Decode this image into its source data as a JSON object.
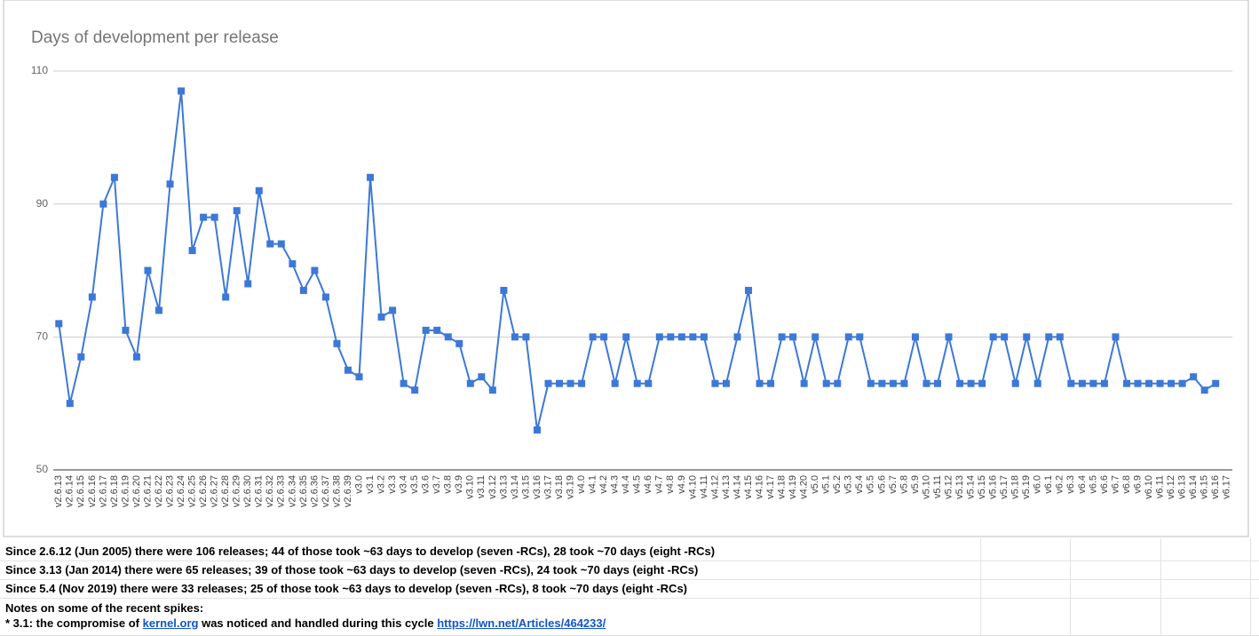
{
  "chart_data": {
    "type": "line",
    "title": "Days of development per release",
    "categories": [
      "v2.6.13",
      "v2.6.14",
      "v2.6.15",
      "v2.6.16",
      "v2.6.17",
      "v2.6.18",
      "v2.6.19",
      "v2.6.20",
      "v2.6.21",
      "v2.6.22",
      "v2.6.23",
      "v2.6.24",
      "v2.6.25",
      "v2.6.26",
      "v2.6.27",
      "v2.6.28",
      "v2.6.29",
      "v2.6.30",
      "v2.6.31",
      "v2.6.32",
      "v2.6.33",
      "v2.6.34",
      "v2.6.35",
      "v2.6.36",
      "v2.6.37",
      "v2.6.38",
      "v2.6.39",
      "v3.0",
      "v3.1",
      "v3.2",
      "v3.3",
      "v3.4",
      "v3.5",
      "v3.6",
      "v3.7",
      "v3.8",
      "v3.9",
      "v3.10",
      "v3.11",
      "v3.12",
      "v3.13",
      "v3.14",
      "v3.15",
      "v3.16",
      "v3.17",
      "v3.18",
      "v3.19",
      "v4.0",
      "v4.1",
      "v4.2",
      "v4.3",
      "v4.4",
      "v4.5",
      "v4.6",
      "v4.7",
      "v4.8",
      "v4.9",
      "v4.10",
      "v4.11",
      "v4.12",
      "v4.13",
      "v4.14",
      "v4.15",
      "v4.16",
      "v4.17",
      "v4.18",
      "v4.19",
      "v4.20",
      "v5.0",
      "v5.1",
      "v5.2",
      "v5.3",
      "v5.4",
      "v5.5",
      "v5.6",
      "v5.7",
      "v5.8",
      "v5.9",
      "v5.10",
      "v5.11",
      "v5.12",
      "v5.13",
      "v5.14",
      "v5.15",
      "v5.16",
      "v5.17",
      "v5.18",
      "v5.19",
      "v6.0",
      "v6.1",
      "v6.2",
      "v6.3",
      "v6.4",
      "v6.5",
      "v6.6",
      "v6.7",
      "v6.8",
      "v6.9",
      "v6.10",
      "v6.11",
      "v6.12",
      "v6.13",
      "v6.14",
      "v6.15",
      "v6.16",
      "v6.17"
    ],
    "series": [
      {
        "name": "Days",
        "color": "#3c78d8",
        "values": [
          72,
          60,
          67,
          76,
          90,
          94,
          71,
          67,
          80,
          74,
          93,
          107,
          83,
          88,
          88,
          76,
          89,
          78,
          92,
          84,
          84,
          81,
          77,
          80,
          76,
          69,
          65,
          64,
          94,
          73,
          74,
          63,
          62,
          71,
          71,
          70,
          69,
          63,
          64,
          62,
          77,
          70,
          70,
          56,
          63,
          63,
          63,
          63,
          70,
          70,
          63,
          70,
          63,
          63,
          70,
          70,
          70,
          70,
          70,
          63,
          63,
          70,
          77,
          63,
          63,
          70,
          70,
          63,
          70,
          63,
          63,
          70,
          70,
          63,
          63,
          63,
          63,
          70,
          63,
          63,
          70,
          63,
          63,
          63,
          70,
          70,
          63,
          70,
          63,
          70,
          70,
          63,
          63,
          63,
          63,
          70,
          63,
          63,
          63,
          63,
          63,
          63,
          64,
          62,
          63,
          null
        ]
      }
    ],
    "ylim": [
      50,
      110
    ],
    "yticks": [
      50,
      70,
      90,
      110
    ],
    "grid": true
  },
  "notes": {
    "rows": [
      "Since 2.6.12 (Jun 2005) there were 106 releases; 44 of those took ~63 days to develop (seven -RCs), 28 took ~70 days (eight -RCs)",
      "Since 3.13 (Jan 2014) there were 65 releases; 39 of those took ~63 days to develop (seven -RCs), 24 took ~70 days (eight -RCs)",
      "Since 5.4 (Nov 2019) there were 33 releases; 25 of those took ~63 days to develop (seven -RCs), 8 took ~70 days (eight -RCs)"
    ],
    "heading": "Notes on some of the recent spikes:",
    "spike": {
      "prefix": "* 3.1: the compromise of",
      "link": "kernel.org",
      "middle": "was noticed and handled during this cycle",
      "url": "https://lwn.net/Articles/464233/"
    }
  }
}
